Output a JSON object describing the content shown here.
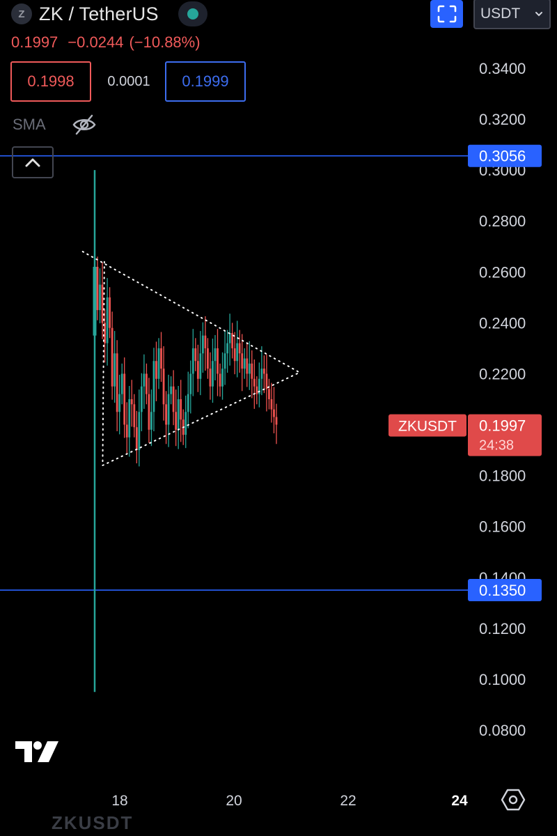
{
  "header": {
    "coin_letter": "Z",
    "symbol_title": "ZK / TetherUS",
    "last_price": "0.1997",
    "change": "−0.0244",
    "change_pct": "(−10.88%)",
    "currency": "USDT"
  },
  "order": {
    "bid": "0.1998",
    "spread": "0.0001",
    "ask": "0.1999"
  },
  "indicator": {
    "label": "SMA"
  },
  "icons": {
    "fullscreen": "fullscreen-icon",
    "visibility": "eye-off-icon",
    "collapse": "chevron-up-icon",
    "settings": "gear-icon",
    "logo": "tradingview-logo"
  },
  "colors": {
    "up": "#26a69a",
    "down": "#ef5350",
    "line": "#2962ff",
    "accent": "#2962ff",
    "price_label": "#f05a5a"
  },
  "footer": {
    "ghost_text": "ZKUSDT"
  },
  "chart_data": {
    "type": "candlestick",
    "symbol": "ZKUSDT",
    "y_ticks": [
      "0.3400",
      "0.3200",
      "0.3000",
      "0.2800",
      "0.2600",
      "0.2400",
      "0.2200",
      "0.1800",
      "0.1600",
      "0.1400",
      "0.1200",
      "0.1000",
      "0.0800"
    ],
    "x_ticks": [
      "18",
      "20",
      "22",
      "24"
    ],
    "ylim": [
      0.07,
      0.36
    ],
    "horizontal_lines": [
      {
        "value": 0.3056,
        "label": "0.3056"
      },
      {
        "value": 0.135,
        "label": "0.1350"
      }
    ],
    "price_tag": {
      "symbol": "ZKUSDT",
      "price": "0.1997",
      "countdown": "24:38"
    },
    "spike_candle": {
      "x": 17.6,
      "open": 0.235,
      "close": 0.262,
      "high": 0.3,
      "low": 0.095
    },
    "candle_x_range": [
      17.62,
      20.75
    ],
    "candle_closes": [
      0.245,
      0.255,
      0.24,
      0.232,
      0.25,
      0.238,
      0.215,
      0.228,
      0.205,
      0.212,
      0.22,
      0.2,
      0.195,
      0.21,
      0.208,
      0.199,
      0.19,
      0.205,
      0.215,
      0.22,
      0.212,
      0.198,
      0.205,
      0.225,
      0.218,
      0.23,
      0.222,
      0.208,
      0.2,
      0.212,
      0.215,
      0.205,
      0.198,
      0.21,
      0.202,
      0.196,
      0.205,
      0.212,
      0.22,
      0.23,
      0.225,
      0.218,
      0.228,
      0.235,
      0.23,
      0.222,
      0.215,
      0.225,
      0.23,
      0.22,
      0.215,
      0.222,
      0.228,
      0.232,
      0.236,
      0.23,
      0.225,
      0.232,
      0.228,
      0.222,
      0.226,
      0.22,
      0.224,
      0.218,
      0.215,
      0.212,
      0.218,
      0.222,
      0.22,
      0.214,
      0.21,
      0.206,
      0.203,
      0.2
    ],
    "trendlines": [
      {
        "style": "dotted",
        "from": [
          17.35,
          0.268
        ],
        "to": [
          21.15,
          0.2205
        ]
      },
      {
        "style": "dotted",
        "from": [
          17.7,
          0.184
        ],
        "to": [
          21.15,
          0.2205
        ]
      },
      {
        "style": "dotted",
        "from": [
          17.73,
          0.264
        ],
        "to": [
          17.7,
          0.184
        ]
      }
    ]
  }
}
